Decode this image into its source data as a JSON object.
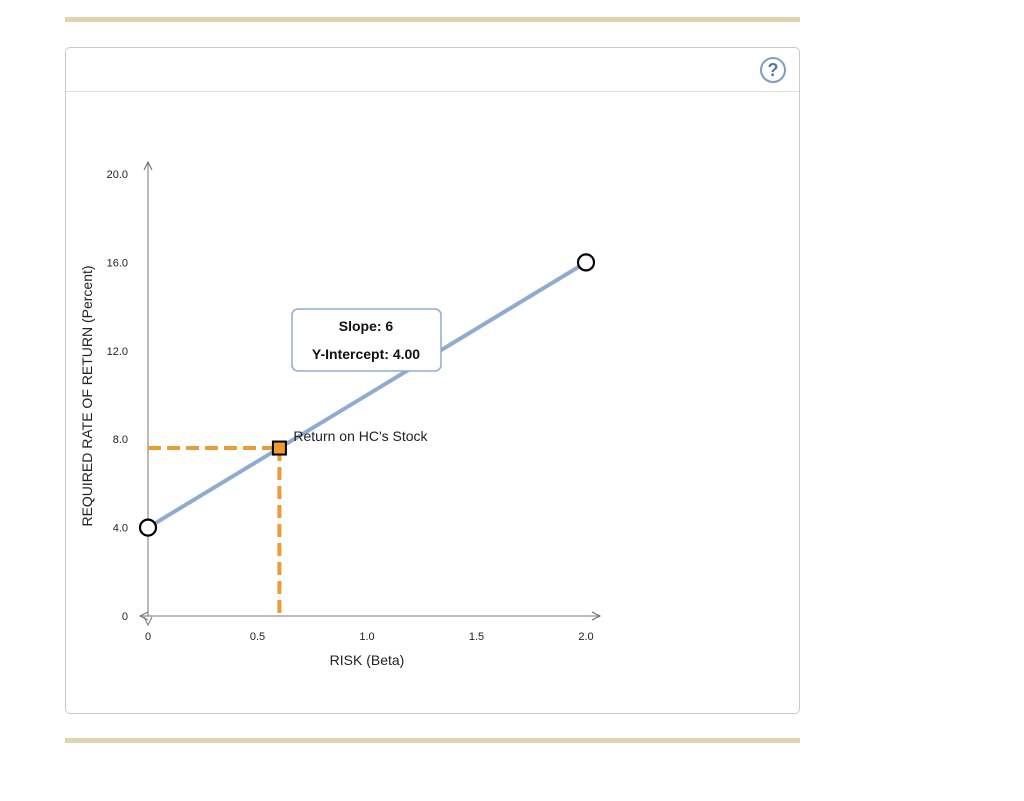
{
  "help": {
    "label": "?"
  },
  "chart_data": {
    "type": "line",
    "xlabel": "RISK (Beta)",
    "ylabel": "REQUIRED RATE OF RETURN (Percent)",
    "xlim": [
      0,
      2.0
    ],
    "ylim": [
      0,
      20.0
    ],
    "x_ticks": [
      "0",
      "0.5",
      "1.0",
      "1.5",
      "2.0"
    ],
    "x_tick_values": [
      0,
      0.5,
      1.0,
      1.5,
      2.0
    ],
    "y_ticks": [
      "0",
      "4.0",
      "8.0",
      "12.0",
      "16.0",
      "20.0"
    ],
    "y_tick_values": [
      0,
      4,
      8,
      12,
      16,
      20
    ],
    "series": [
      {
        "x": [
          0,
          2.0
        ],
        "y": [
          4.0,
          16.0
        ],
        "color": "#8eacd0"
      }
    ],
    "endpoints": [
      {
        "x": 0,
        "y": 4.0
      },
      {
        "x": 2.0,
        "y": 16.0
      }
    ],
    "point": {
      "x": 0.6,
      "y": 7.6,
      "label": "Return on HC's Stock",
      "color": "#ee9a35"
    },
    "callout": {
      "line1": "Slope: 6",
      "line2": "Y-Intercept: 4.00"
    },
    "grid": false
  }
}
